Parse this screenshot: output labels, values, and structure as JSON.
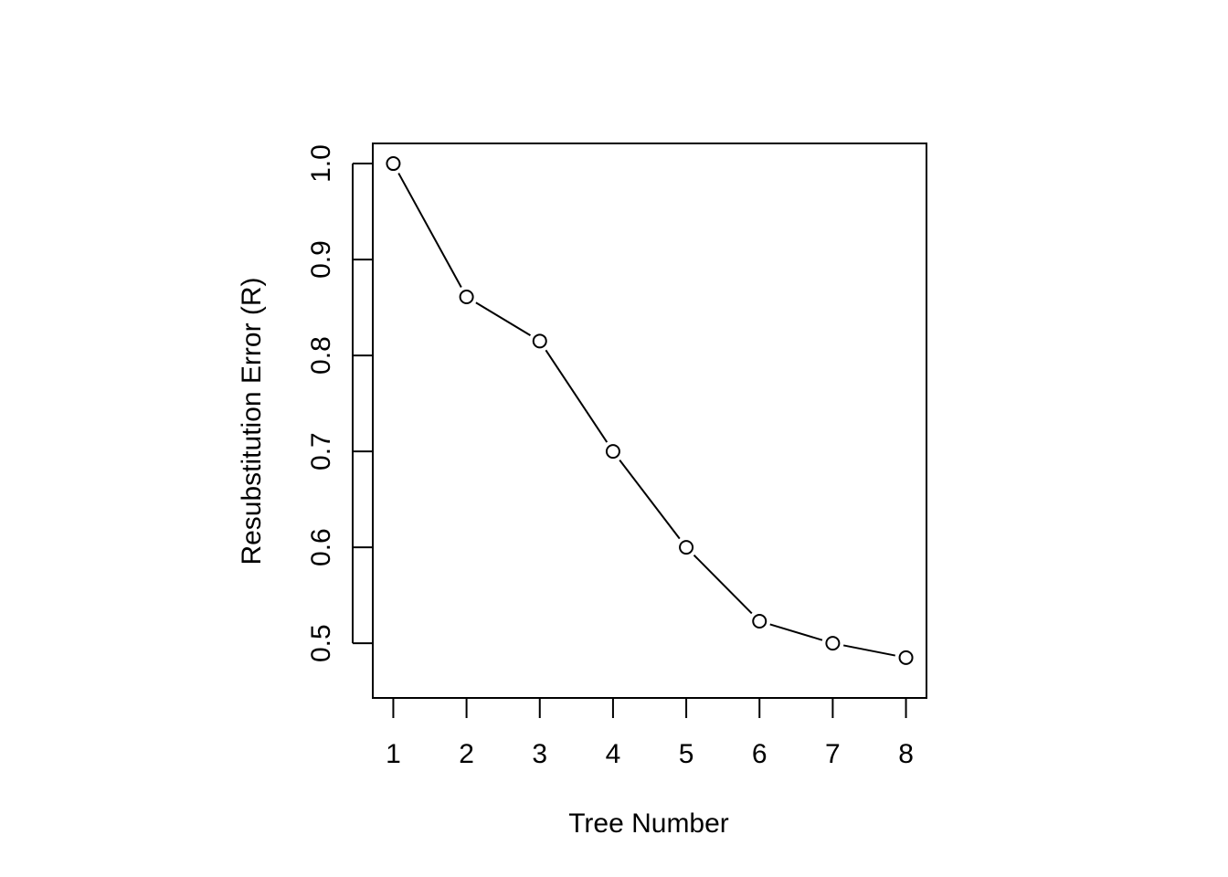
{
  "chart_data": {
    "type": "line",
    "xlabel": "Tree Number",
    "ylabel": "Resubstitution Error (R)",
    "x": [
      1,
      2,
      3,
      4,
      5,
      6,
      7,
      8
    ],
    "values": [
      1.0,
      0.861,
      0.815,
      0.7,
      0.6,
      0.523,
      0.5,
      0.485
    ],
    "xlim": [
      0.72,
      8.28
    ],
    "ylim": [
      0.443,
      1.021
    ],
    "xticks": [
      1,
      2,
      3,
      4,
      5,
      6,
      7,
      8
    ],
    "xtick_labels": [
      "1",
      "2",
      "3",
      "4",
      "5",
      "6",
      "7",
      "8"
    ],
    "yticks": [
      0.5,
      0.6,
      0.7,
      0.8,
      0.9,
      1.0
    ],
    "ytick_labels": [
      "0.5",
      "0.6",
      "0.7",
      "0.8",
      "0.9",
      "1.0"
    ],
    "marker": "open-circle",
    "grid": false,
    "legend": false,
    "colors": {
      "line": "#000000",
      "marker_stroke": "#000000",
      "marker_fill": "#ffffff",
      "background": "#ffffff"
    }
  }
}
